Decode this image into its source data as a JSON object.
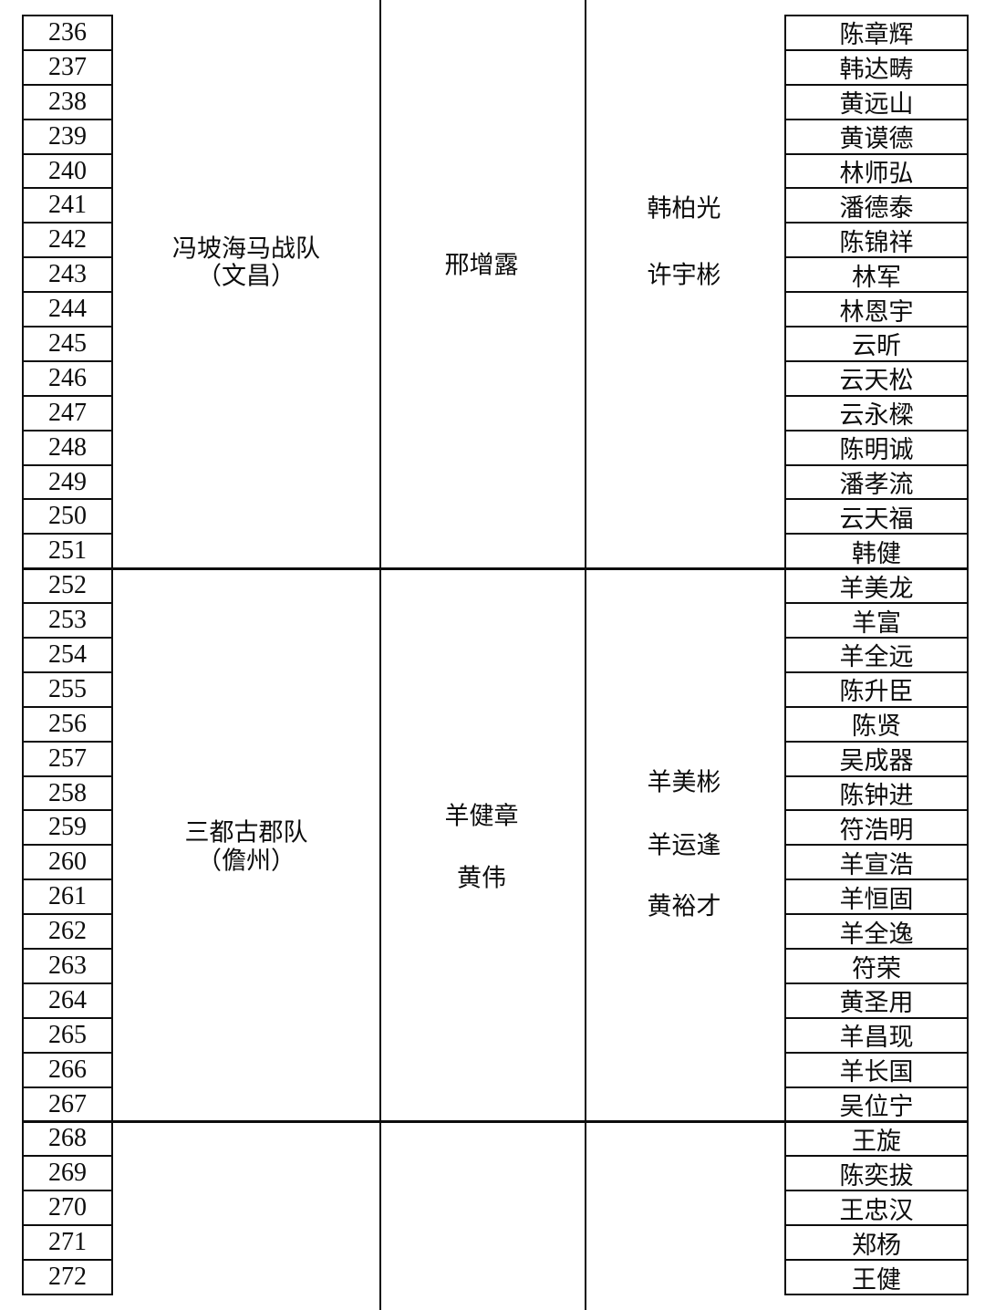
{
  "document": {
    "type": "team-roster-table",
    "columns": {
      "number_column": "serial numbers",
      "team_column": "team name",
      "coach_column": "coaches",
      "leader_column": "team leaders",
      "player_column": "player names"
    },
    "colors": {
      "ink": "#0d0d0d",
      "paper": "#ffffff"
    },
    "sections": [
      {
        "team_name_lines": [
          "冯坡海马战队",
          "（文昌）"
        ],
        "coaches": [
          "邢增露"
        ],
        "leaders": [
          "韩柏光",
          "许宇彬"
        ],
        "rows": [
          {
            "no": "236",
            "player": "陈章辉"
          },
          {
            "no": "237",
            "player": "韩达畴"
          },
          {
            "no": "238",
            "player": "黄远山"
          },
          {
            "no": "239",
            "player": "黄谟德"
          },
          {
            "no": "240",
            "player": "林师弘"
          },
          {
            "no": "241",
            "player": "潘德泰"
          },
          {
            "no": "242",
            "player": "陈锦祥"
          },
          {
            "no": "243",
            "player": "林军"
          },
          {
            "no": "244",
            "player": "林恩宇"
          },
          {
            "no": "245",
            "player": "云昕"
          },
          {
            "no": "246",
            "player": "云天松"
          },
          {
            "no": "247",
            "player": "云永樑"
          },
          {
            "no": "248",
            "player": "陈明诚"
          },
          {
            "no": "249",
            "player": "潘孝流"
          },
          {
            "no": "250",
            "player": "云天福"
          },
          {
            "no": "251",
            "player": "韩健"
          }
        ]
      },
      {
        "team_name_lines": [
          "三都古郡队",
          "（儋州）"
        ],
        "coaches": [
          "羊健章",
          "黄伟"
        ],
        "leaders": [
          "羊美彬",
          "羊运逢",
          "黄裕才"
        ],
        "rows": [
          {
            "no": "252",
            "player": "羊美龙"
          },
          {
            "no": "253",
            "player": "羊富"
          },
          {
            "no": "254",
            "player": "羊全远"
          },
          {
            "no": "255",
            "player": "陈升臣"
          },
          {
            "no": "256",
            "player": "陈贤"
          },
          {
            "no": "257",
            "player": "吴成器"
          },
          {
            "no": "258",
            "player": "陈钟进"
          },
          {
            "no": "259",
            "player": "符浩明"
          },
          {
            "no": "260",
            "player": "羊宣浩"
          },
          {
            "no": "261",
            "player": "羊恒固"
          },
          {
            "no": "262",
            "player": "羊全逸"
          },
          {
            "no": "263",
            "player": "符荣"
          },
          {
            "no": "264",
            "player": "黄圣用"
          },
          {
            "no": "265",
            "player": "羊昌现"
          },
          {
            "no": "266",
            "player": "羊长国"
          },
          {
            "no": "267",
            "player": "吴位宁"
          }
        ]
      },
      {
        "team_name_lines": [],
        "coaches": [],
        "leaders": [],
        "rows": [
          {
            "no": "268",
            "player": "王旋"
          },
          {
            "no": "269",
            "player": "陈奕拔"
          },
          {
            "no": "270",
            "player": "王忠汉"
          },
          {
            "no": "271",
            "player": "郑杨"
          },
          {
            "no": "272",
            "player": "王健"
          }
        ]
      }
    ]
  }
}
